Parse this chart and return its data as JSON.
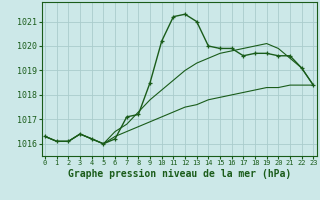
{
  "xlabel": "Graphe pression niveau de la mer (hPa)",
  "bg_color": "#cce8e8",
  "grid_color": "#aacccc",
  "line_color": "#1a5c1a",
  "x_values": [
    0,
    1,
    2,
    3,
    4,
    5,
    6,
    7,
    8,
    9,
    10,
    11,
    12,
    13,
    14,
    15,
    16,
    17,
    18,
    19,
    20,
    21,
    22,
    23
  ],
  "y_values": [
    1016.3,
    1016.1,
    1016.1,
    1016.4,
    1016.2,
    1016.0,
    1016.2,
    1017.1,
    1017.2,
    1018.5,
    1020.2,
    1021.2,
    1021.3,
    1021.0,
    1020.0,
    1019.9,
    1019.9,
    1019.6,
    1019.7,
    1019.7,
    1019.6,
    1019.6,
    1019.1,
    1018.4
  ],
  "y2_values": [
    1016.3,
    1016.1,
    1016.1,
    1016.4,
    1016.2,
    1016.0,
    1016.5,
    1016.8,
    1017.3,
    1017.8,
    1018.2,
    1018.6,
    1019.0,
    1019.3,
    1019.5,
    1019.7,
    1019.8,
    1019.9,
    1020.0,
    1020.1,
    1019.9,
    1019.5,
    1019.1,
    1018.4
  ],
  "y3_values": [
    1016.3,
    1016.1,
    1016.1,
    1016.4,
    1016.2,
    1016.0,
    1016.3,
    1016.5,
    1016.7,
    1016.9,
    1017.1,
    1017.3,
    1017.5,
    1017.6,
    1017.8,
    1017.9,
    1018.0,
    1018.1,
    1018.2,
    1018.3,
    1018.3,
    1018.4,
    1018.4,
    1018.4
  ],
  "ylim": [
    1015.5,
    1021.8
  ],
  "yticks": [
    1016,
    1017,
    1018,
    1019,
    1020,
    1021
  ],
  "xlim": [
    -0.3,
    23.3
  ],
  "xticks": [
    0,
    1,
    2,
    3,
    4,
    5,
    6,
    7,
    8,
    9,
    10,
    11,
    12,
    13,
    14,
    15,
    16,
    17,
    18,
    19,
    20,
    21,
    22,
    23
  ]
}
